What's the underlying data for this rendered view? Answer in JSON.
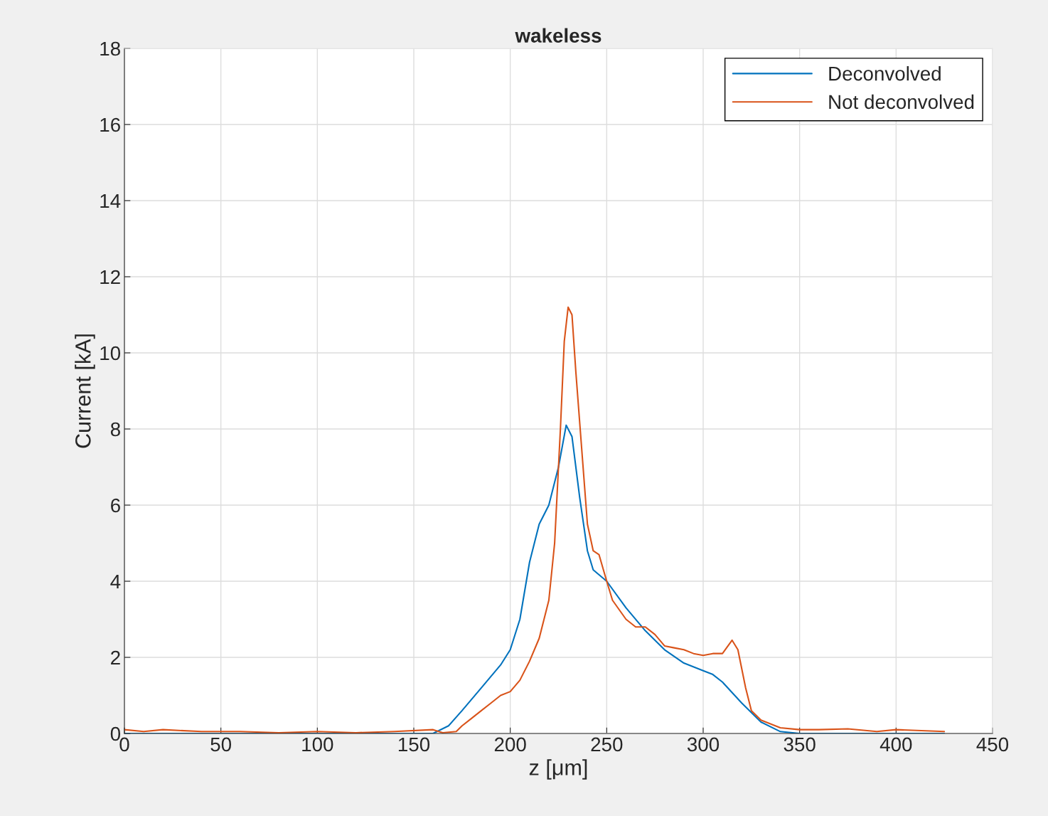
{
  "chart_data": {
    "type": "line",
    "title": "wakeless",
    "xlabel": "z [μm]",
    "ylabel": "Current [kA]",
    "xlim": [
      0,
      450
    ],
    "xticks": [
      0,
      50,
      100,
      150,
      200,
      250,
      300,
      350,
      400,
      450
    ],
    "ylim": [
      0,
      18
    ],
    "yticks": [
      0,
      2,
      4,
      6,
      8,
      10,
      12,
      14,
      16,
      18
    ],
    "grid": true,
    "legend": "top right",
    "line_style": "solid",
    "marker": "none",
    "series": [
      {
        "name": "Deconvolved",
        "color": "#0072bd",
        "x": [
          0,
          100,
          160,
          168,
          175,
          185,
          195,
          200,
          205,
          210,
          215,
          220,
          225,
          229,
          232,
          236,
          240,
          243,
          250,
          260,
          270,
          280,
          290,
          300,
          305,
          310,
          320,
          330,
          340,
          350,
          425
        ],
        "values": [
          0,
          0,
          0,
          0.2,
          0.6,
          1.2,
          1.8,
          2.2,
          3,
          4.5,
          5.5,
          6.0,
          7.0,
          8.1,
          7.8,
          6.2,
          4.8,
          4.3,
          4.0,
          3.3,
          2.7,
          2.2,
          1.85,
          1.65,
          1.55,
          1.35,
          0.8,
          0.3,
          0.05,
          0,
          0
        ]
      },
      {
        "name": "Not deconvolved",
        "color": "#d95319",
        "x": [
          0,
          10,
          20,
          40,
          60,
          80,
          100,
          120,
          140,
          160,
          165,
          172,
          175,
          180,
          185,
          190,
          195,
          200,
          205,
          210,
          215,
          220,
          223,
          226,
          228,
          230,
          232,
          234,
          237,
          240,
          243,
          246,
          250,
          253,
          260,
          265,
          270,
          275,
          280,
          285,
          290,
          295,
          300,
          305,
          310,
          315,
          318,
          322,
          325,
          330,
          340,
          350,
          360,
          375,
          390,
          400,
          425
        ],
        "values": [
          0.1,
          0.05,
          0.1,
          0.05,
          0.05,
          0.02,
          0.05,
          0.02,
          0.05,
          0.1,
          0.02,
          0.05,
          0.2,
          0.4,
          0.6,
          0.8,
          1.0,
          1.1,
          1.4,
          1.9,
          2.5,
          3.5,
          5,
          8,
          10.3,
          11.2,
          11.0,
          9.5,
          7.5,
          5.5,
          4.8,
          4.7,
          4.0,
          3.5,
          3.0,
          2.8,
          2.8,
          2.6,
          2.3,
          2.25,
          2.2,
          2.1,
          2.05,
          2.1,
          2.1,
          2.45,
          2.2,
          1.2,
          0.6,
          0.35,
          0.15,
          0.1,
          0.1,
          0.12,
          0.05,
          0.1,
          0.05
        ]
      }
    ]
  }
}
